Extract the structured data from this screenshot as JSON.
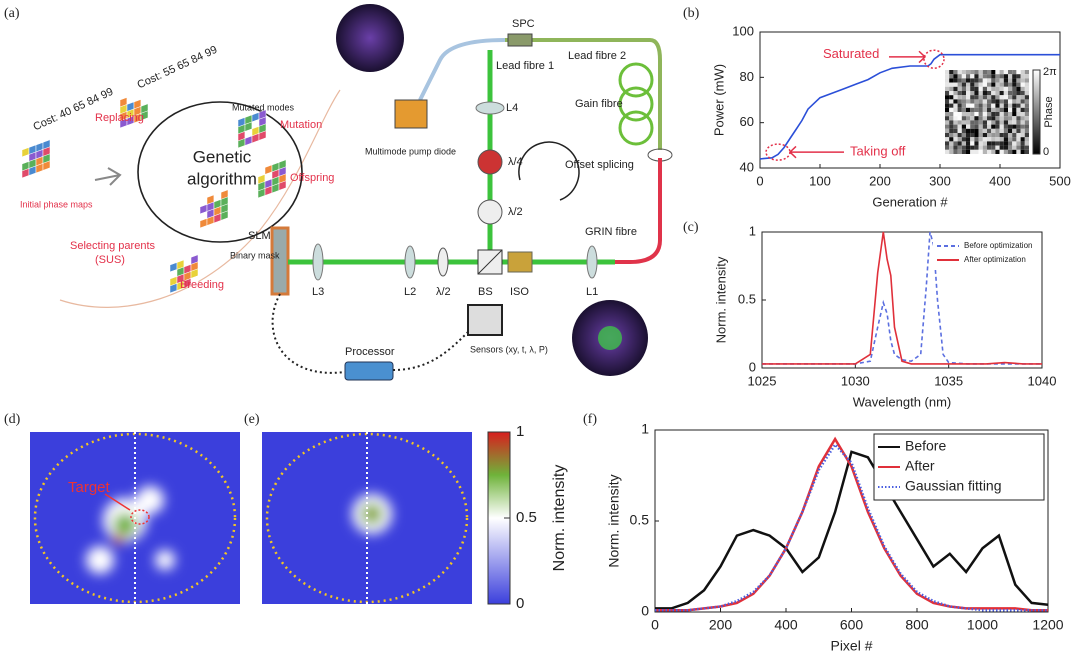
{
  "panel_labels": [
    "(a)",
    "(b)",
    "(c)",
    "(d)",
    "(e)",
    "(f)"
  ],
  "diagram": {
    "labels": [
      "Cost: 40 65 84 99",
      "Cost: 55 65 84 99",
      "Mutated modes",
      "Replacing",
      "Mutation",
      "Genetic",
      "algorithm",
      "Offspring",
      "Initial phase maps",
      "Selecting parents",
      "(SUS)",
      "Binary mask",
      "Breeding",
      "SLM",
      "L3",
      "L2",
      "λ/2",
      "BS",
      "ISO",
      "L1",
      "L4",
      "λ/4",
      "λ/2",
      "SPC",
      "Lead fibre 1",
      "Lead fibre 2",
      "Gain fibre",
      "Offset splicing",
      "GRIN fibre",
      "Multimode pump diode",
      "Processor",
      "Sensors (xy, t, λ, P)"
    ]
  },
  "images": {
    "target_label": "Target"
  },
  "colorbar": {
    "label": "Norm. intensity",
    "lim": [
      0,
      1
    ],
    "ticks": [
      0,
      0.5,
      1
    ]
  },
  "chart_data": [
    {
      "type": "line",
      "xlabel": "Generation #",
      "ylabel": "Power (mW)",
      "x": [
        0,
        20,
        30,
        40,
        50,
        60,
        70,
        80,
        100,
        120,
        140,
        160,
        180,
        200,
        220,
        250,
        280,
        285,
        290,
        300,
        350,
        400,
        450,
        500
      ],
      "series": [
        {
          "color": "#2b4fd8",
          "linestyle": "solid",
          "values": [
            44,
            44.5,
            46,
            49,
            53,
            57,
            61,
            66,
            71,
            73,
            75,
            77,
            79,
            82,
            84,
            85,
            85,
            86,
            88,
            90,
            90,
            90,
            90,
            90
          ]
        }
      ],
      "xlim": [
        0,
        500
      ],
      "xticks": [
        0,
        100,
        200,
        300,
        400,
        500
      ],
      "ylim": [
        40,
        100
      ],
      "yticks": [
        40,
        60,
        80,
        100
      ],
      "annotations": [
        "Saturated",
        "Taking off"
      ],
      "inset_labels": [
        "Phase",
        "2π",
        "0"
      ]
    },
    {
      "type": "line",
      "xlabel": "Wavelength (nm)",
      "ylabel": "Norm. intensity",
      "x": [
        1025,
        1027,
        1029,
        1030,
        1030.8,
        1031.2,
        1031.5,
        1031.7,
        1031.9,
        1032.1,
        1032.5,
        1033,
        1033.5,
        1033.8,
        1034,
        1034.2,
        1034.4,
        1034.7,
        1035,
        1036,
        1037,
        1038,
        1039,
        1040
      ],
      "series": [
        {
          "name": "Before optimization",
          "color": "#5b6fe0",
          "linestyle": "dashed",
          "values": [
            0.03,
            0.03,
            0.03,
            0.03,
            0.05,
            0.3,
            0.48,
            0.4,
            0.2,
            0.1,
            0.06,
            0.05,
            0.1,
            0.6,
            1,
            0.9,
            0.5,
            0.1,
            0.04,
            0.03,
            0.03,
            0.03,
            0.03,
            0.03
          ]
        },
        {
          "name": "After optimization",
          "color": "#e0303a",
          "linestyle": "solid",
          "values": [
            0.03,
            0.03,
            0.03,
            0.03,
            0.1,
            0.7,
            1,
            0.8,
            0.68,
            0.3,
            0.05,
            0.03,
            0.03,
            0.03,
            0.03,
            0.03,
            0.03,
            0.03,
            0.03,
            0.03,
            0.03,
            0.04,
            0.03,
            0.03
          ]
        }
      ],
      "xlim": [
        1025,
        1040
      ],
      "xticks": [
        1025,
        1030,
        1035,
        1040
      ],
      "ylim": [
        0,
        1
      ],
      "yticks": [
        0,
        0.5,
        1
      ],
      "legend": "upper right"
    },
    {
      "type": "line",
      "xlabel": "Pixel #",
      "ylabel": "Norm. intensity",
      "x": [
        0,
        50,
        100,
        150,
        200,
        250,
        300,
        350,
        400,
        450,
        500,
        550,
        600,
        650,
        700,
        750,
        800,
        850,
        900,
        950,
        1000,
        1050,
        1100,
        1150,
        1200
      ],
      "series": [
        {
          "name": "Before",
          "color": "#111111",
          "linestyle": "solid",
          "values": [
            0.02,
            0.02,
            0.05,
            0.12,
            0.25,
            0.42,
            0.45,
            0.42,
            0.35,
            0.22,
            0.3,
            0.55,
            0.88,
            0.85,
            0.7,
            0.55,
            0.4,
            0.25,
            0.32,
            0.22,
            0.35,
            0.42,
            0.15,
            0.05,
            0.04
          ]
        },
        {
          "name": "After",
          "color": "#e0303a",
          "linestyle": "solid",
          "values": [
            0.01,
            0.01,
            0.01,
            0.02,
            0.03,
            0.05,
            0.1,
            0.2,
            0.35,
            0.55,
            0.8,
            0.95,
            0.8,
            0.55,
            0.35,
            0.2,
            0.1,
            0.05,
            0.03,
            0.02,
            0.02,
            0.02,
            0.02,
            0.01,
            0.01
          ]
        },
        {
          "name": "Gaussian fitting",
          "color": "#4a5fe0",
          "linestyle": "dotted",
          "values": [
            0.01,
            0.01,
            0.01,
            0.02,
            0.03,
            0.06,
            0.11,
            0.2,
            0.35,
            0.55,
            0.78,
            0.92,
            0.82,
            0.57,
            0.36,
            0.21,
            0.11,
            0.06,
            0.03,
            0.02,
            0.01,
            0.01,
            0.01,
            0.01,
            0.01
          ]
        }
      ],
      "xlim": [
        0,
        1200
      ],
      "xticks": [
        0,
        200,
        400,
        600,
        800,
        1000,
        1200
      ],
      "ylim": [
        0,
        1
      ],
      "yticks": [
        0,
        0.5,
        1
      ],
      "legend": "upper right"
    }
  ]
}
